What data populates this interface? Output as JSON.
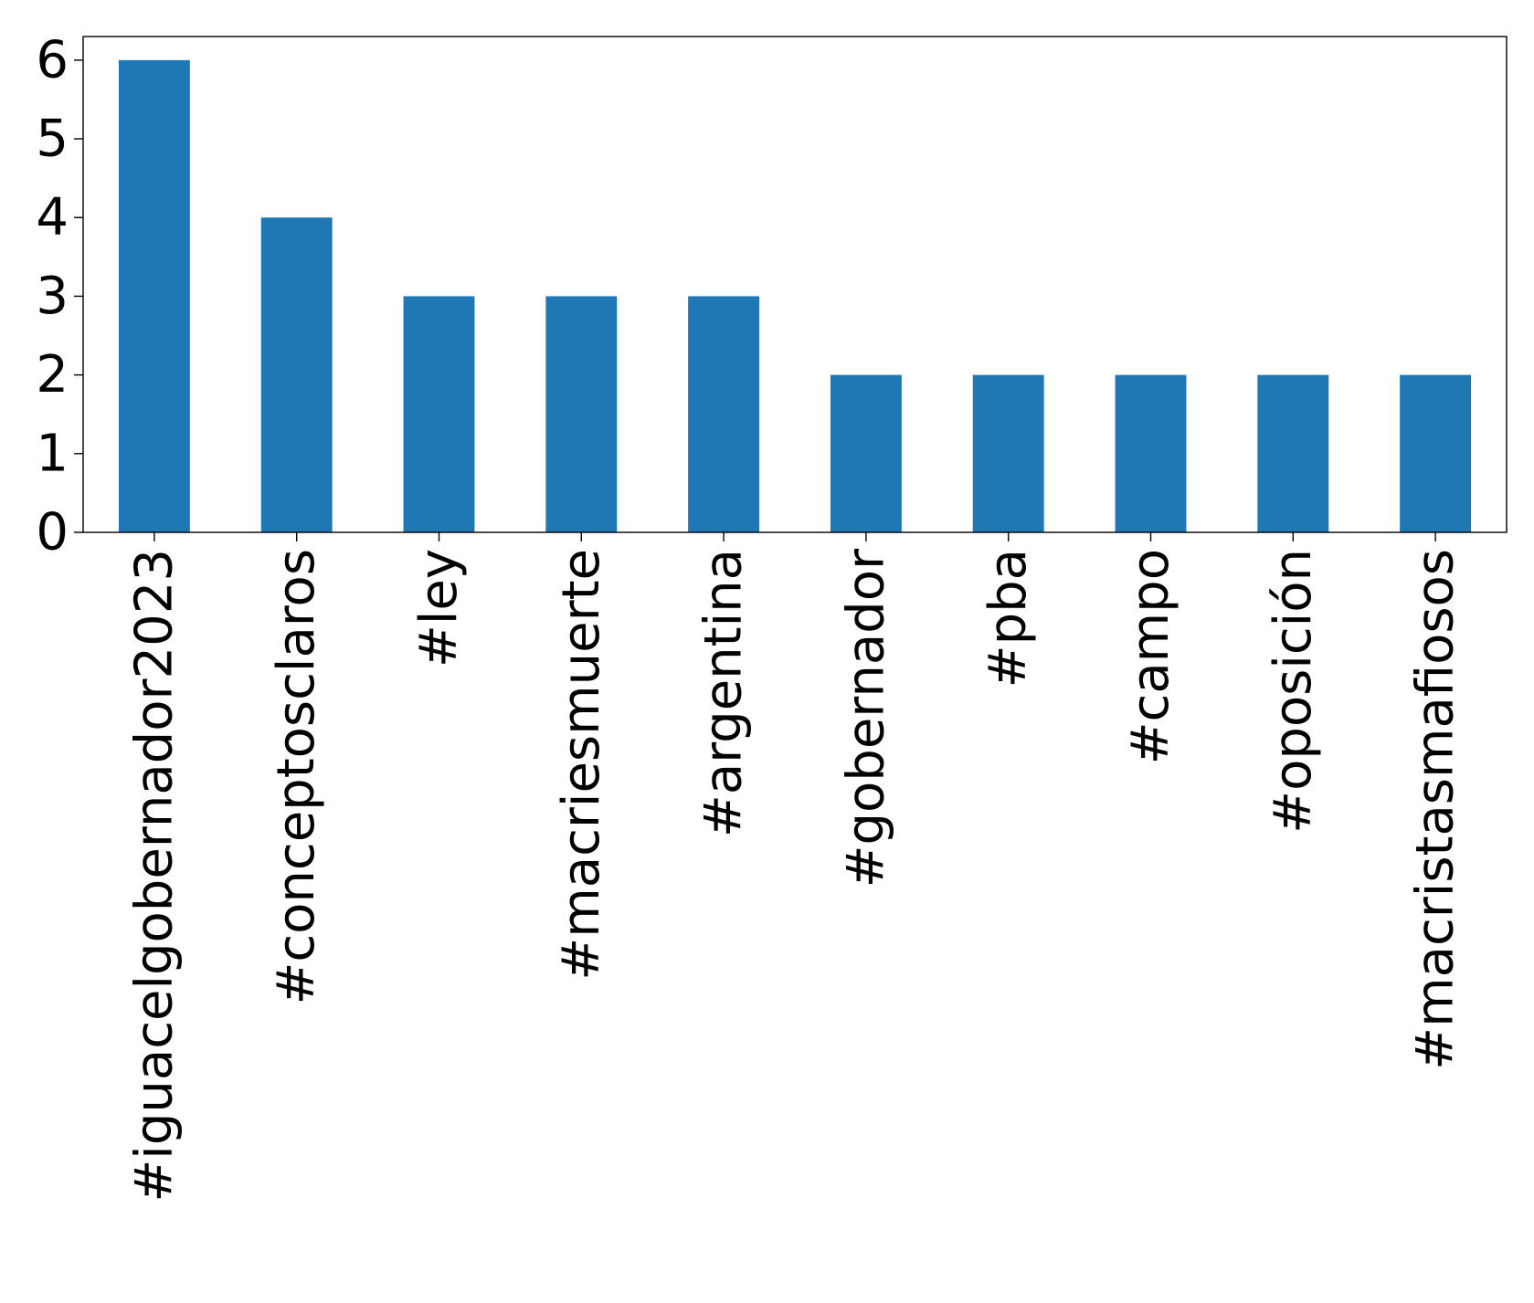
{
  "chart_data": {
    "type": "bar",
    "title": "",
    "xlabel": "",
    "ylabel": "",
    "categories": [
      "#iguacelgobernador2023",
      "#conceptosclaros",
      "#ley",
      "#macriesmuerte",
      "#argentina",
      "#gobernador",
      "#pba",
      "#campo",
      "#oposición",
      "#macristasmafiosos"
    ],
    "values": [
      6,
      4,
      3,
      3,
      3,
      2,
      2,
      2,
      2,
      2
    ],
    "ylim": [
      0,
      6.3
    ],
    "yticks": [
      0,
      1,
      2,
      3,
      4,
      5,
      6
    ],
    "grid": false,
    "legend": "none",
    "bar_color": "#1f77b4"
  }
}
